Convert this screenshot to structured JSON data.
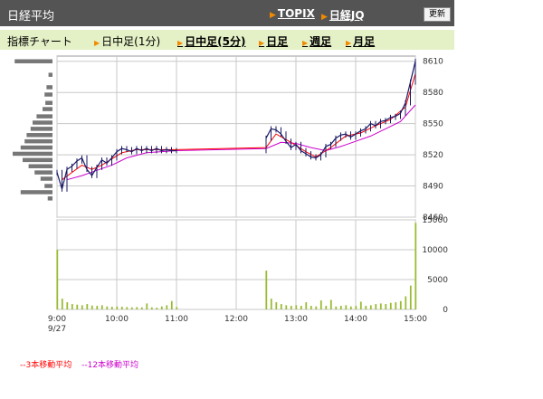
{
  "header": {
    "title": "日経平均",
    "links": [
      {
        "label": "TOPIX"
      },
      {
        "label": "日経JQ"
      }
    ],
    "refresh_label": "更新"
  },
  "subheader": {
    "label": "指標チャート",
    "tabs": [
      {
        "label": "日中足(1分)",
        "active": false
      },
      {
        "label": "日中足(5分)",
        "active": true
      },
      {
        "label": "日足",
        "active": false
      },
      {
        "label": "週足",
        "active": false
      },
      {
        "label": "月足",
        "active": false
      }
    ]
  },
  "legend": [
    {
      "label": "--3本移動平均",
      "color": "#ff0000"
    },
    {
      "label": "--12本移動平均",
      "color": "#cc00cc"
    }
  ],
  "colors": {
    "header_bg": "#545454",
    "subheader_bg": "#e4f0c6",
    "candle": "#1a1a66",
    "ma3": "#ff0000",
    "ma12": "#cc00cc",
    "volume": "#99bb33",
    "volume_profile": "#777777"
  },
  "chart_data": [
    {
      "type": "line",
      "name": "price",
      "date_label": "9/27",
      "x_ticks": [
        "9:00",
        "10:00",
        "11:00",
        "12:00",
        "13:00",
        "14:00",
        "15:00"
      ],
      "y_ticks": [
        8460,
        8490,
        8520,
        8550,
        8580,
        8610
      ],
      "ylim": [
        8460,
        8615
      ],
      "price_points": [
        {
          "t": "9:00",
          "v": 8503
        },
        {
          "t": "9:05",
          "v": 8487
        },
        {
          "t": "9:10",
          "v": 8506
        },
        {
          "t": "9:15",
          "v": 8509
        },
        {
          "t": "9:20",
          "v": 8514
        },
        {
          "t": "9:25",
          "v": 8517
        },
        {
          "t": "9:30",
          "v": 8506
        },
        {
          "t": "9:35",
          "v": 8500
        },
        {
          "t": "9:40",
          "v": 8508
        },
        {
          "t": "9:45",
          "v": 8515
        },
        {
          "t": "9:50",
          "v": 8512
        },
        {
          "t": "9:55",
          "v": 8517
        },
        {
          "t": "10:00",
          "v": 8523
        },
        {
          "t": "10:05",
          "v": 8526
        },
        {
          "t": "10:10",
          "v": 8525
        },
        {
          "t": "10:15",
          "v": 8523
        },
        {
          "t": "10:20",
          "v": 8526
        },
        {
          "t": "10:25",
          "v": 8524
        },
        {
          "t": "10:30",
          "v": 8526
        },
        {
          "t": "10:35",
          "v": 8524
        },
        {
          "t": "10:40",
          "v": 8526
        },
        {
          "t": "10:45",
          "v": 8524
        },
        {
          "t": "10:50",
          "v": 8525
        },
        {
          "t": "10:55",
          "v": 8524
        },
        {
          "t": "11:00",
          "v": 8524
        },
        {
          "t": "12:30",
          "v": 8536
        },
        {
          "t": "12:35",
          "v": 8545
        },
        {
          "t": "12:40",
          "v": 8544
        },
        {
          "t": "12:45",
          "v": 8540
        },
        {
          "t": "12:50",
          "v": 8533
        },
        {
          "t": "12:55",
          "v": 8527
        },
        {
          "t": "13:00",
          "v": 8530
        },
        {
          "t": "13:05",
          "v": 8524
        },
        {
          "t": "13:10",
          "v": 8521
        },
        {
          "t": "13:15",
          "v": 8518
        },
        {
          "t": "13:20",
          "v": 8517
        },
        {
          "t": "13:25",
          "v": 8520
        },
        {
          "t": "13:30",
          "v": 8528
        },
        {
          "t": "13:35",
          "v": 8530
        },
        {
          "t": "13:40",
          "v": 8536
        },
        {
          "t": "13:45",
          "v": 8539
        },
        {
          "t": "13:50",
          "v": 8540
        },
        {
          "t": "13:55",
          "v": 8537
        },
        {
          "t": "14:00",
          "v": 8540
        },
        {
          "t": "14:05",
          "v": 8543
        },
        {
          "t": "14:10",
          "v": 8545
        },
        {
          "t": "14:15",
          "v": 8550
        },
        {
          "t": "14:20",
          "v": 8548
        },
        {
          "t": "14:25",
          "v": 8552
        },
        {
          "t": "14:30",
          "v": 8553
        },
        {
          "t": "14:35",
          "v": 8556
        },
        {
          "t": "14:40",
          "v": 8557
        },
        {
          "t": "14:45",
          "v": 8560
        },
        {
          "t": "14:50",
          "v": 8570
        },
        {
          "t": "14:55",
          "v": 8590
        },
        {
          "t": "15:00",
          "v": 8610
        }
      ],
      "ma3": [
        {
          "t": "9:05",
          "v": 8496
        },
        {
          "t": "9:15",
          "v": 8503
        },
        {
          "t": "9:25",
          "v": 8510
        },
        {
          "t": "9:35",
          "v": 8506
        },
        {
          "t": "9:45",
          "v": 8510
        },
        {
          "t": "9:55",
          "v": 8516
        },
        {
          "t": "10:05",
          "v": 8522
        },
        {
          "t": "10:20",
          "v": 8525
        },
        {
          "t": "10:40",
          "v": 8525
        },
        {
          "t": "11:00",
          "v": 8525
        },
        {
          "t": "12:30",
          "v": 8527
        },
        {
          "t": "12:40",
          "v": 8540
        },
        {
          "t": "12:55",
          "v": 8532
        },
        {
          "t": "13:10",
          "v": 8523
        },
        {
          "t": "13:20",
          "v": 8518
        },
        {
          "t": "13:35",
          "v": 8527
        },
        {
          "t": "13:50",
          "v": 8538
        },
        {
          "t": "14:05",
          "v": 8541
        },
        {
          "t": "14:20",
          "v": 8548
        },
        {
          "t": "14:35",
          "v": 8554
        },
        {
          "t": "14:50",
          "v": 8566
        },
        {
          "t": "15:00",
          "v": 8598
        }
      ],
      "ma12": [
        {
          "t": "9:10",
          "v": 8496
        },
        {
          "t": "9:25",
          "v": 8500
        },
        {
          "t": "9:40",
          "v": 8505
        },
        {
          "t": "9:55",
          "v": 8510
        },
        {
          "t": "10:10",
          "v": 8517
        },
        {
          "t": "10:30",
          "v": 8522
        },
        {
          "t": "11:00",
          "v": 8524
        },
        {
          "t": "12:30",
          "v": 8526
        },
        {
          "t": "12:45",
          "v": 8532
        },
        {
          "t": "13:00",
          "v": 8531
        },
        {
          "t": "13:15",
          "v": 8527
        },
        {
          "t": "13:30",
          "v": 8524
        },
        {
          "t": "13:45",
          "v": 8528
        },
        {
          "t": "14:00",
          "v": 8533
        },
        {
          "t": "14:15",
          "v": 8538
        },
        {
          "t": "14:30",
          "v": 8545
        },
        {
          "t": "14:45",
          "v": 8552
        },
        {
          "t": "15:00",
          "v": 8568
        }
      ]
    },
    {
      "type": "bar",
      "name": "volume",
      "y_ticks": [
        0,
        5000,
        10000,
        15000
      ],
      "ylim": [
        0,
        15000
      ],
      "bars": [
        {
          "t": "9:00",
          "v": 10000
        },
        {
          "t": "9:05",
          "v": 1800
        },
        {
          "t": "9:10",
          "v": 1200
        },
        {
          "t": "9:15",
          "v": 900
        },
        {
          "t": "9:20",
          "v": 800
        },
        {
          "t": "9:25",
          "v": 700
        },
        {
          "t": "9:30",
          "v": 900
        },
        {
          "t": "9:35",
          "v": 650
        },
        {
          "t": "9:40",
          "v": 600
        },
        {
          "t": "9:45",
          "v": 700
        },
        {
          "t": "9:50",
          "v": 500
        },
        {
          "t": "9:55",
          "v": 450
        },
        {
          "t": "10:00",
          "v": 500
        },
        {
          "t": "10:05",
          "v": 450
        },
        {
          "t": "10:10",
          "v": 400
        },
        {
          "t": "10:15",
          "v": 350
        },
        {
          "t": "10:20",
          "v": 400
        },
        {
          "t": "10:25",
          "v": 350
        },
        {
          "t": "10:30",
          "v": 1000
        },
        {
          "t": "10:35",
          "v": 350
        },
        {
          "t": "10:40",
          "v": 300
        },
        {
          "t": "10:45",
          "v": 500
        },
        {
          "t": "10:50",
          "v": 700
        },
        {
          "t": "10:55",
          "v": 1400
        },
        {
          "t": "11:00",
          "v": 400
        },
        {
          "t": "12:30",
          "v": 6500
        },
        {
          "t": "12:35",
          "v": 1800
        },
        {
          "t": "12:40",
          "v": 1200
        },
        {
          "t": "12:45",
          "v": 900
        },
        {
          "t": "12:50",
          "v": 700
        },
        {
          "t": "12:55",
          "v": 600
        },
        {
          "t": "13:00",
          "v": 700
        },
        {
          "t": "13:05",
          "v": 600
        },
        {
          "t": "13:10",
          "v": 1200
        },
        {
          "t": "13:15",
          "v": 600
        },
        {
          "t": "13:20",
          "v": 500
        },
        {
          "t": "13:25",
          "v": 1500
        },
        {
          "t": "13:30",
          "v": 600
        },
        {
          "t": "13:35",
          "v": 1600
        },
        {
          "t": "13:40",
          "v": 500
        },
        {
          "t": "13:45",
          "v": 600
        },
        {
          "t": "13:50",
          "v": 700
        },
        {
          "t": "13:55",
          "v": 500
        },
        {
          "t": "14:00",
          "v": 600
        },
        {
          "t": "14:05",
          "v": 1300
        },
        {
          "t": "14:10",
          "v": 600
        },
        {
          "t": "14:15",
          "v": 700
        },
        {
          "t": "14:20",
          "v": 900
        },
        {
          "t": "14:25",
          "v": 1000
        },
        {
          "t": "14:30",
          "v": 900
        },
        {
          "t": "14:35",
          "v": 1100
        },
        {
          "t": "14:40",
          "v": 1200
        },
        {
          "t": "14:45",
          "v": 1400
        },
        {
          "t": "14:50",
          "v": 2200
        },
        {
          "t": "14:55",
          "v": 4000
        },
        {
          "t": "15:00",
          "v": 14500
        }
      ]
    },
    {
      "type": "bar",
      "name": "price-volume-profile",
      "orientation": "horizontal",
      "bins": [
        {
          "price": 8610,
          "v": 0.95
        },
        {
          "price": 8597,
          "v": 0.1
        },
        {
          "price": 8585,
          "v": 0.15
        },
        {
          "price": 8578,
          "v": 0.2
        },
        {
          "price": 8570,
          "v": 0.18
        },
        {
          "price": 8564,
          "v": 0.25
        },
        {
          "price": 8557,
          "v": 0.4
        },
        {
          "price": 8551,
          "v": 0.5
        },
        {
          "price": 8545,
          "v": 0.55
        },
        {
          "price": 8539,
          "v": 0.65
        },
        {
          "price": 8533,
          "v": 0.7
        },
        {
          "price": 8527,
          "v": 0.8
        },
        {
          "price": 8521,
          "v": 1.0
        },
        {
          "price": 8515,
          "v": 0.75
        },
        {
          "price": 8509,
          "v": 0.6
        },
        {
          "price": 8503,
          "v": 0.45
        },
        {
          "price": 8497,
          "v": 0.3
        },
        {
          "price": 8490,
          "v": 0.2
        },
        {
          "price": 8484,
          "v": 0.8
        },
        {
          "price": 8478,
          "v": 0.12
        }
      ]
    }
  ]
}
